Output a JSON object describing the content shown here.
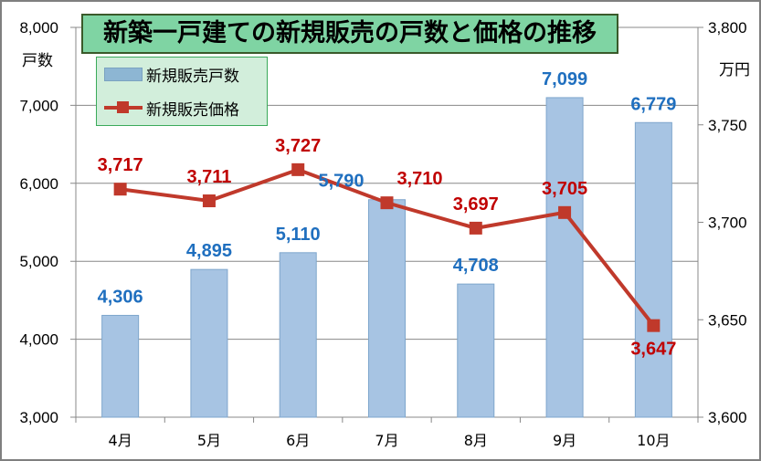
{
  "chart_data": {
    "type": "bar+line",
    "title": "新築一戸建ての新規販売の戸数と価格の推移",
    "categories": [
      "4月",
      "5月",
      "6月",
      "7月",
      "8月",
      "9月",
      "10月"
    ],
    "series": [
      {
        "name": "新規販売戸数",
        "type": "bar",
        "axis": "left",
        "values": [
          4306,
          4895,
          5110,
          5790,
          4708,
          7099,
          6779
        ],
        "labels": [
          "4,306",
          "4,895",
          "5,110",
          "5,790",
          "4,708",
          "7,099",
          "6,779"
        ],
        "color": "#a7c4e3",
        "label_color": "#1f6fbf"
      },
      {
        "name": "新規販売価格",
        "type": "line",
        "axis": "right",
        "values": [
          3717,
          3711,
          3727,
          3710,
          3697,
          3705,
          3647
        ],
        "labels": [
          "3,717",
          "3,711",
          "3,727",
          "3,710",
          "3,697",
          "3,705",
          "3,647"
        ],
        "color": "#c0392b",
        "label_color": "#c00000"
      }
    ],
    "left_axis": {
      "label": "戸数",
      "ylim": [
        3000,
        8000
      ],
      "ticks": [
        "3,000",
        "4,000",
        "5,000",
        "6,000",
        "7,000",
        "8,000"
      ]
    },
    "right_axis": {
      "label": "万円",
      "ylim": [
        3600,
        3800
      ],
      "ticks": [
        "3,600",
        "3,650",
        "3,700",
        "3,750",
        "3,800"
      ]
    },
    "grid": true,
    "legend_position": "top-left"
  }
}
